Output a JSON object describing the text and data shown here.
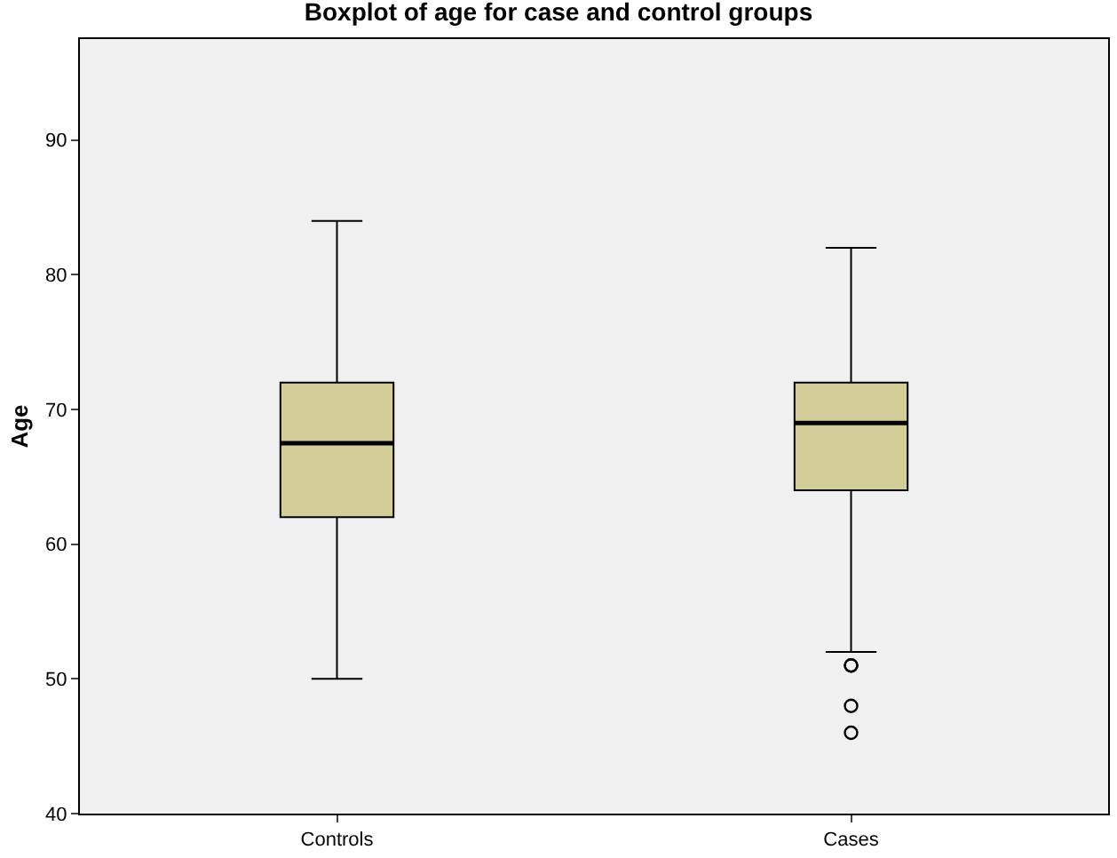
{
  "chart_data": {
    "type": "box",
    "title": "Boxplot of age for case and control groups",
    "ylabel": "Age",
    "categories": [
      "Controls",
      "Cases"
    ],
    "boxes": [
      {
        "low": 50,
        "q1": 62,
        "median": 67.5,
        "q3": 72,
        "high": 84
      },
      {
        "low": 52,
        "q1": 64,
        "median": 69,
        "q3": 72,
        "high": 82,
        "outliers": [
          51,
          51,
          48,
          46
        ]
      }
    ],
    "color": "#d3ce97",
    "ylim": [
      40,
      97.5
    ],
    "yticks": [
      40,
      50,
      60,
      70,
      80,
      90
    ],
    "grid": false
  }
}
